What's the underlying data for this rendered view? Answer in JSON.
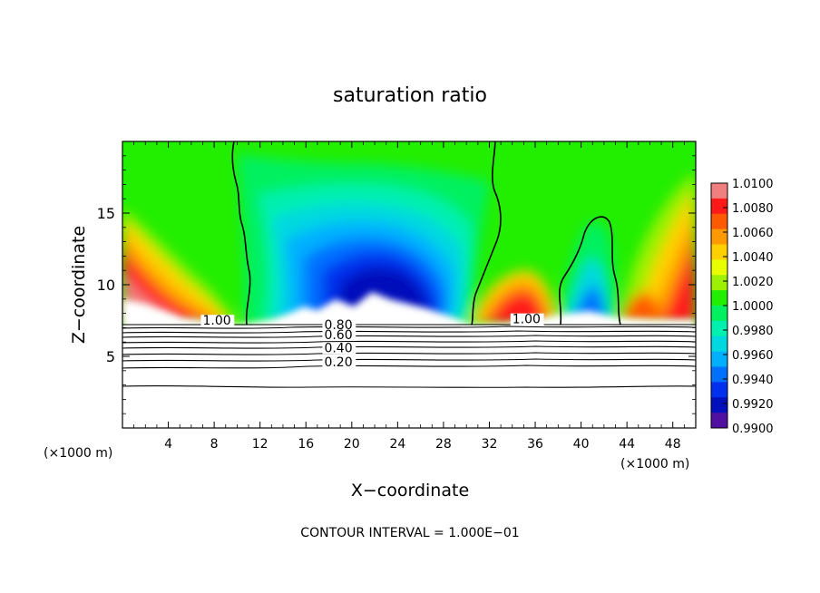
{
  "chart_data": {
    "type": "heatmap",
    "title": "saturation ratio",
    "xlabel": "X−coordinate",
    "ylabel": "Z−coordinate",
    "x_unit_label": "(×1000 m)",
    "footer": "CONTOUR INTERVAL = 1.000E−01",
    "xlim": [
      0,
      50
    ],
    "ylim": [
      0,
      20
    ],
    "x_ticks": [
      "4",
      "8",
      "12",
      "16",
      "20",
      "24",
      "28",
      "32",
      "36",
      "40",
      "44",
      "48"
    ],
    "x_tick_values": [
      4,
      8,
      12,
      16,
      20,
      24,
      28,
      32,
      36,
      40,
      44,
      48
    ],
    "y_ticks": [
      "5",
      "10",
      "15"
    ],
    "y_tick_values": [
      5,
      10,
      15
    ],
    "colorbar": {
      "labels": [
        "1.0100",
        "1.0080",
        "1.0060",
        "1.0040",
        "1.0020",
        "1.0000",
        "0.9980",
        "0.9960",
        "0.9940",
        "0.9920",
        "0.9900"
      ],
      "range": [
        0.99,
        1.01
      ],
      "colors": [
        "#f08080",
        "#ff1a1a",
        "#ff5a00",
        "#ff9900",
        "#ffd000",
        "#e8ff00",
        "#9cf000",
        "#22ee00",
        "#00f060",
        "#00f0b0",
        "#00d8e0",
        "#00b0ff",
        "#0070ff",
        "#0030ee",
        "#0010bb",
        "#5010a0"
      ]
    },
    "contour_labels": [
      {
        "text": "1.00",
        "x": 7.0,
        "y": 7.2
      },
      {
        "text": "1.00",
        "x": 34.0,
        "y": 7.3
      },
      {
        "text": "0.80",
        "x": 17.6,
        "y": 6.9
      },
      {
        "text": "0.60",
        "x": 17.6,
        "y": 6.2
      },
      {
        "text": "0.40",
        "x": 17.6,
        "y": 5.3
      },
      {
        "text": "0.20",
        "x": 17.6,
        "y": 4.3
      }
    ],
    "lower_contour_levels": [
      1.0,
      0.9,
      0.8,
      0.7,
      0.6,
      0.5,
      0.4,
      0.3,
      0.2,
      0.1
    ],
    "cloud_base_z": 7.2,
    "grid": false,
    "legend": "colorbar right"
  }
}
